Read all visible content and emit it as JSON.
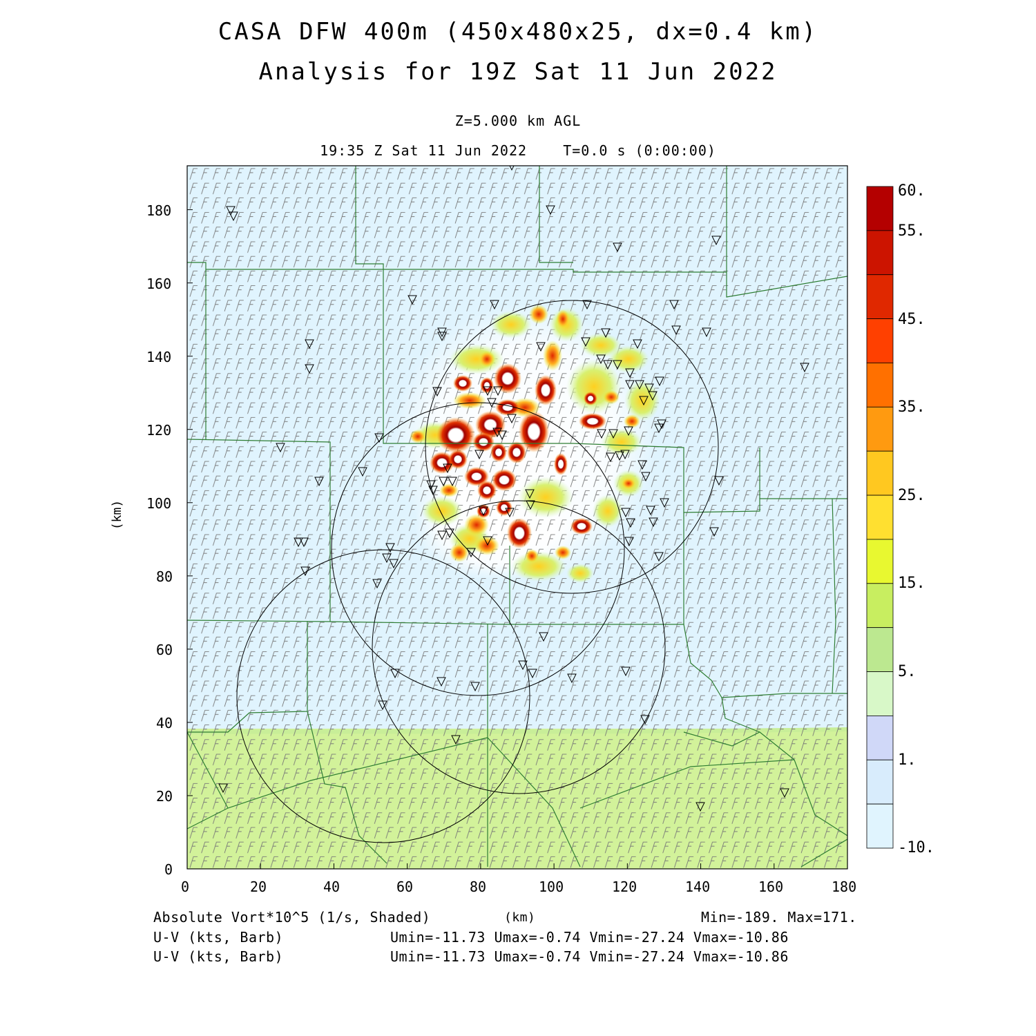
{
  "header": {
    "title_line1": "CASA DFW 400m (450x480x25, dx=0.4 km)",
    "title_line2": "Analysis for 19Z Sat 11 Jun 2022",
    "level": "Z=5.000 km AGL",
    "valid_time": "19:35 Z Sat 11 Jun 2022    T=0.0 s (0:00:00)"
  },
  "axes": {
    "x_label": "(km)",
    "y_label": "(km)",
    "x_ticks": [
      "0",
      "20",
      "40",
      "60",
      "80",
      "100",
      "120",
      "140",
      "160",
      "180"
    ],
    "y_ticks": [
      "0",
      "20",
      "40",
      "60",
      "80",
      "100",
      "120",
      "140",
      "160",
      "180"
    ],
    "x_range": [
      0,
      180
    ],
    "y_range": [
      0,
      192
    ]
  },
  "colorbar": {
    "labels": [
      "60.",
      "55.",
      "45.",
      "35.",
      "25.",
      "15.",
      "5.",
      "1.",
      "-10."
    ],
    "colors": [
      "#b40000",
      "#cc1400",
      "#e02800",
      "#ff4000",
      "#ff7000",
      "#ff9a10",
      "#ffc820",
      "#ffe030",
      "#e8f830",
      "#c8ee60",
      "#bce890",
      "#d8f8c8",
      "#d0d8f8",
      "#d8ecfc",
      "#e0f4fe"
    ]
  },
  "footer": {
    "field_label": "Absolute Vort*10^5 (1/s, Shaded)",
    "x_unit": "(km)",
    "min_max": "Min=-189. Max=171.",
    "barb_label_1": "U-V (kts, Barb)",
    "barb_stats_1": "Umin=-11.73 Umax=-0.74 Vmin=-27.24 Vmax=-10.86",
    "barb_label_2": "U-V (kts, Barb)",
    "barb_stats_2": "Umin=-11.73 Umax=-0.74 Vmin=-27.24 Vmax=-10.86"
  },
  "colors": {
    "background_field": "#e0f4fe",
    "southern_field": "#d2f29a",
    "county_lines": "#2e7d32",
    "radar_rings": "#000000",
    "storm_cores": "#c80000"
  }
}
